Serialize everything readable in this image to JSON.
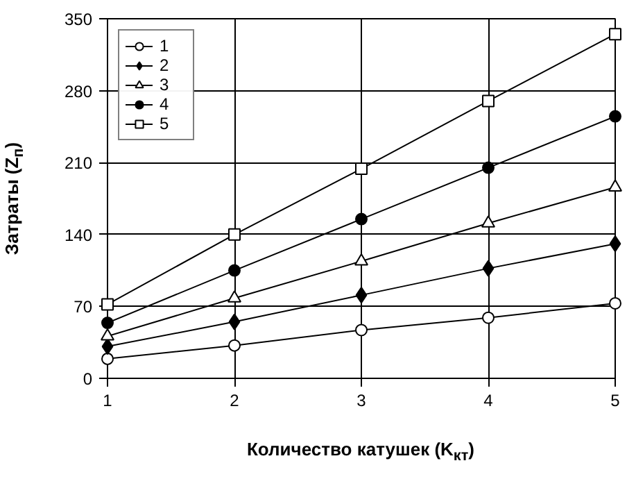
{
  "chart_data": {
    "type": "line",
    "xlabel": "Количество катушек (K$_{кт}$)",
    "ylabel": "Затраты (Z$_{п}$)",
    "x": [
      1,
      2,
      3,
      4,
      5
    ],
    "xlim": [
      1,
      5
    ],
    "xticks": [
      1,
      2,
      3,
      4,
      5
    ],
    "ylim": [
      0,
      350
    ],
    "yticks": [
      0,
      70,
      140,
      210,
      280,
      350
    ],
    "grid": true,
    "legend": "top left",
    "line_style": "solid",
    "series": [
      {
        "name": "1",
        "color": "#000000",
        "marker": "circle",
        "values": [
          19,
          32,
          47,
          59,
          73
        ]
      },
      {
        "name": "2",
        "color": "#000000",
        "marker": "diamond",
        "values": [
          31,
          55,
          81,
          107,
          131
        ]
      },
      {
        "name": "3",
        "color": "#000000",
        "marker": "triangle",
        "values": [
          41,
          78,
          114,
          151,
          186
        ]
      },
      {
        "name": "4",
        "color": "#000000",
        "marker": "circle",
        "values": [
          54,
          105,
          155,
          205,
          255
        ]
      },
      {
        "name": "5",
        "color": "#000000",
        "marker": "square",
        "values": [
          72,
          140,
          204,
          270,
          335
        ]
      }
    ]
  }
}
